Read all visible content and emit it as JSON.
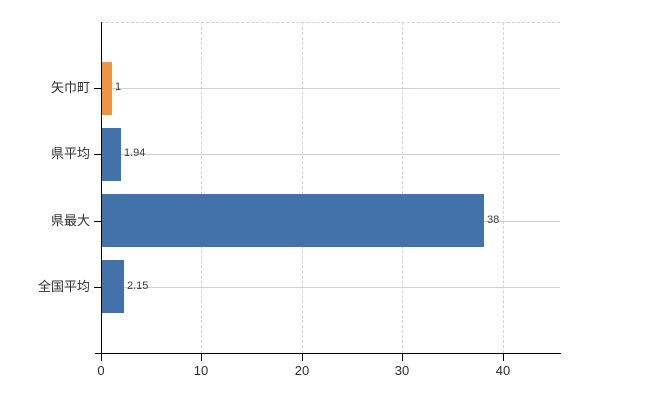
{
  "chart_data": {
    "type": "bar",
    "orientation": "horizontal",
    "title": "",
    "xlabel": "",
    "ylabel": "",
    "categories": [
      "矢巾町",
      "県平均",
      "県最大",
      "全国平均"
    ],
    "values": [
      1,
      1.94,
      38,
      2.15
    ],
    "value_labels": [
      "1",
      "1.94",
      "38",
      "2.15"
    ],
    "bar_colors": [
      "#ee9540",
      "#4272a9",
      "#4272a9",
      "#4272a9"
    ],
    "x_ticks": [
      0,
      10,
      20,
      30,
      40
    ],
    "x_tick_labels": [
      "0",
      "10",
      "20",
      "30",
      "40"
    ],
    "xlim": [
      0,
      45.7
    ],
    "grid": true,
    "legend": false,
    "colors": {
      "grid_horizontal": "#ccd5cc",
      "grid_vertical": "#d6cfd6",
      "top_border": "#d6cfd6",
      "axis": "#000000",
      "label_text": "#2e2e2e",
      "value_text": "#3c3c3c",
      "background": "#ffffff"
    }
  }
}
